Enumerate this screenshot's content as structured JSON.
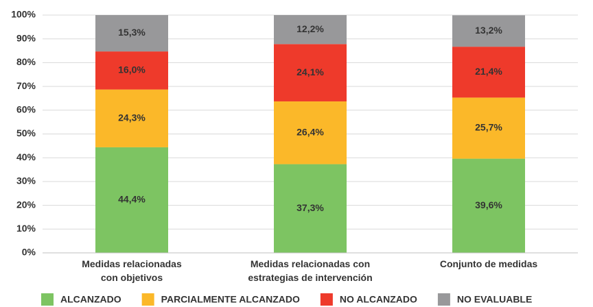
{
  "chart_data": {
    "type": "stacked_bar",
    "categories": [
      [
        "Medidas relacionadas",
        "con objetivos"
      ],
      [
        "Medidas relacionadas con",
        "estrategias de intervención"
      ],
      [
        "Conjunto de medidas"
      ]
    ],
    "series": [
      {
        "name": "ALCANZADO",
        "color": "#7dc462",
        "values": [
          44.4,
          37.3,
          39.6
        ],
        "value_labels": [
          "44,4%",
          "37,3%",
          "39,6%"
        ]
      },
      {
        "name": "PARCIALMENTE ALCANZADO",
        "color": "#fbb829",
        "values": [
          24.3,
          26.4,
          25.7
        ],
        "value_labels": [
          "24,3%",
          "26,4%",
          "25,7%"
        ]
      },
      {
        "name": "NO ALCANZADO",
        "color": "#ee3a2b",
        "values": [
          16.0,
          24.1,
          21.4
        ],
        "value_labels": [
          "16,0%",
          "24,1%",
          "21,4%"
        ]
      },
      {
        "name": "NO EVALUABLE",
        "color": "#98989a",
        "values": [
          15.3,
          12.2,
          13.2
        ],
        "value_labels": [
          "15,3%",
          "12,2%",
          "13,2%"
        ]
      }
    ],
    "ylim": [
      0,
      100
    ],
    "yticks": [
      {
        "value": 0,
        "label": "0%"
      },
      {
        "value": 10,
        "label": "10%"
      },
      {
        "value": 20,
        "label": "20%"
      },
      {
        "value": 30,
        "label": "30%"
      },
      {
        "value": 40,
        "label": "40%"
      },
      {
        "value": 50,
        "label": "50%"
      },
      {
        "value": 60,
        "label": "60%"
      },
      {
        "value": 70,
        "label": "70%"
      },
      {
        "value": 80,
        "label": "80%"
      },
      {
        "value": 90,
        "label": "90%"
      },
      {
        "value": 100,
        "label": "100%"
      }
    ],
    "grid": true
  }
}
